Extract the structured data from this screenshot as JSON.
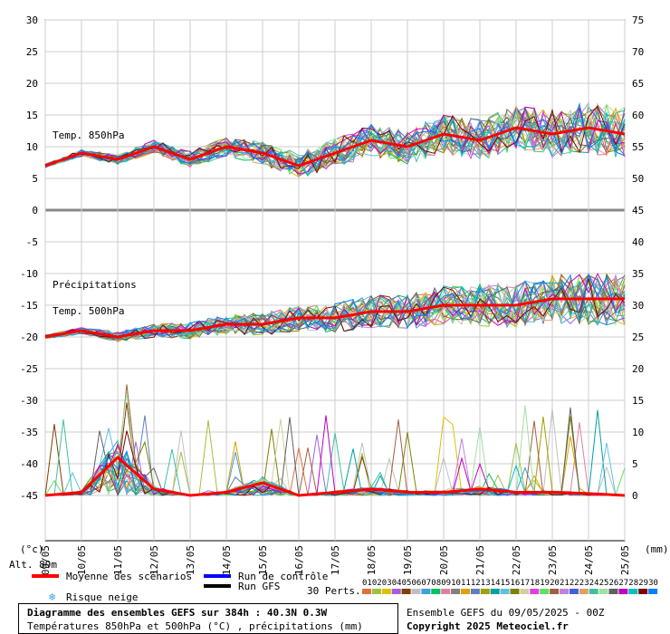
{
  "chart_data": {
    "type": "line",
    "x_dates": [
      "09/05",
      "10/05",
      "11/05",
      "12/05",
      "13/05",
      "14/05",
      "15/05",
      "16/05",
      "17/05",
      "18/05",
      "19/05",
      "20/05",
      "21/05",
      "22/05",
      "23/05",
      "24/05",
      "25/05"
    ],
    "left_axis": {
      "label": "(°c)",
      "ticks": [
        30,
        25,
        20,
        15,
        10,
        5,
        0,
        -5,
        -10,
        -15,
        -20,
        -25,
        -30,
        -35,
        -40,
        -45
      ]
    },
    "right_axis": {
      "label": "(mm)",
      "ticks_top": [
        75,
        70,
        65,
        60,
        55,
        50,
        45
      ],
      "ticks_bottom": [
        40,
        35,
        30,
        25,
        20,
        15,
        10,
        5,
        0
      ]
    },
    "panel_labels": {
      "t850": "Temp. 850hPa",
      "precip": "Précipitations",
      "t500": "Temp. 500hPa"
    },
    "series": [
      {
        "name": "Moyenne des scénarios",
        "color": "#ff0000"
      },
      {
        "name": "Run de contrôle",
        "color": "#0000ff"
      },
      {
        "name": "Run GFS",
        "color": "#000000"
      }
    ],
    "mean_t850": [
      7,
      9,
      8,
      10,
      8,
      10,
      9,
      7,
      9,
      11,
      10,
      12,
      11,
      13,
      12,
      13,
      12
    ],
    "mean_t500": [
      -20,
      -19,
      -20,
      -19,
      -19,
      -18,
      -18,
      -17,
      -17,
      -16,
      -16,
      -15,
      -15,
      -15,
      -14,
      -14,
      -14
    ],
    "mean_precip_mm": [
      0,
      0.5,
      6,
      1,
      0,
      0.5,
      2,
      0,
      0.5,
      1,
      0.5,
      0.5,
      1,
      0.5,
      0.5,
      0.3,
      0
    ]
  },
  "ui": {
    "alt": "Alt. 89m",
    "legend_mean": "Moyenne des scénarios",
    "legend_control": "Run de contrôle",
    "legend_gfs": "Run GFS",
    "legend_snow": "Risque neige",
    "perts_label": "30 Perts.",
    "perts": [
      "01",
      "02",
      "03",
      "04",
      "05",
      "06",
      "07",
      "08",
      "09",
      "10",
      "11",
      "12",
      "13",
      "14",
      "15",
      "16",
      "17",
      "18",
      "19",
      "20",
      "21",
      "22",
      "23",
      "24",
      "25",
      "26",
      "27",
      "28",
      "29",
      "30"
    ],
    "pert_colors": [
      "#e07040",
      "#a0c040",
      "#e0c000",
      "#a060e0",
      "#804000",
      "#c0c0c0",
      "#40a0e0",
      "#00c060",
      "#e080a0",
      "#808080",
      "#e0a000",
      "#6080c0",
      "#a0a000",
      "#00a0a0",
      "#60c0e0",
      "#808000",
      "#d0d0a0",
      "#e040e0",
      "#60e060",
      "#a06040",
      "#c080e0",
      "#4060e0",
      "#e0a060",
      "#40c0a0",
      "#a0e0a0",
      "#606060",
      "#c000c0",
      "#00c0c0",
      "#800000",
      "#0080ff"
    ],
    "footer_title": "Diagramme des ensembles GEFS sur 384h : 40.3N 0.3W",
    "footer_sub": "Températures 850hPa et 500hPa (°C) , précipitations (mm)",
    "footer_run": "Ensemble GEFS du 09/05/2025 - 00Z",
    "footer_copy": "Copyright 2025 Meteociel.fr"
  }
}
